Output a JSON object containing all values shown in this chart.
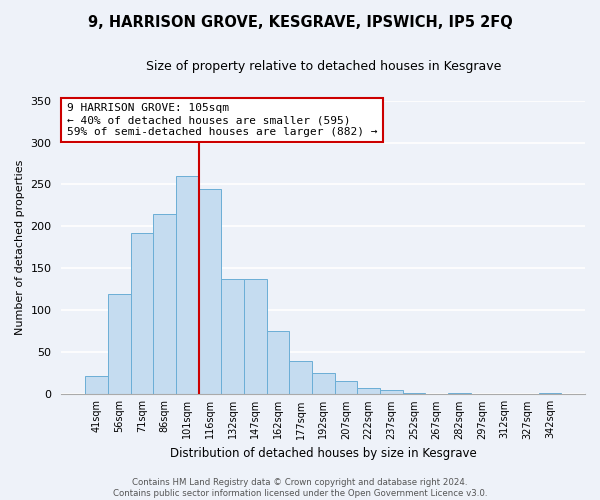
{
  "title": "9, HARRISON GROVE, KESGRAVE, IPSWICH, IP5 2FQ",
  "subtitle": "Size of property relative to detached houses in Kesgrave",
  "xlabel": "Distribution of detached houses by size in Kesgrave",
  "ylabel": "Number of detached properties",
  "bar_labels": [
    "41sqm",
    "56sqm",
    "71sqm",
    "86sqm",
    "101sqm",
    "116sqm",
    "132sqm",
    "147sqm",
    "162sqm",
    "177sqm",
    "192sqm",
    "207sqm",
    "222sqm",
    "237sqm",
    "252sqm",
    "267sqm",
    "282sqm",
    "297sqm",
    "312sqm",
    "327sqm",
    "342sqm"
  ],
  "bar_values": [
    22,
    120,
    192,
    215,
    260,
    245,
    137,
    137,
    76,
    40,
    25,
    16,
    8,
    5,
    2,
    0,
    2,
    0,
    0,
    0,
    2
  ],
  "bar_color": "#c5dcf0",
  "bar_edge_color": "#6baed6",
  "vline_color": "#cc0000",
  "annotation_text": "9 HARRISON GROVE: 105sqm\n← 40% of detached houses are smaller (595)\n59% of semi-detached houses are larger (882) →",
  "annotation_box_color": "#ffffff",
  "annotation_box_edge": "#cc0000",
  "ylim": [
    0,
    350
  ],
  "yticks": [
    0,
    50,
    100,
    150,
    200,
    250,
    300,
    350
  ],
  "footer": "Contains HM Land Registry data © Crown copyright and database right 2024.\nContains public sector information licensed under the Open Government Licence v3.0.",
  "bg_color": "#eef2f9"
}
